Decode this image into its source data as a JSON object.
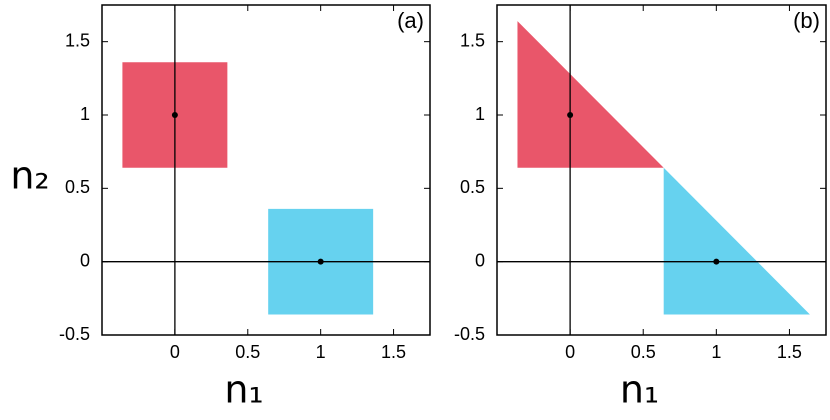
{
  "chart_data": [
    {
      "type": "shapes",
      "panel_label": "(a)",
      "xlabel": "n₁",
      "ylabel": "n₂",
      "xlim": [
        -0.5,
        1.75
      ],
      "ylim": [
        -0.5,
        1.75
      ],
      "xticks": [
        0,
        0.5,
        1,
        1.5
      ],
      "yticks": [
        -0.5,
        0,
        0.5,
        1,
        1.5
      ],
      "regions": [
        {
          "color": "#e9566a",
          "x": [
            -0.36,
            0.36,
            0.36,
            -0.36
          ],
          "y": [
            0.64,
            0.64,
            1.36,
            1.36
          ]
        },
        {
          "color": "#66d2ef",
          "x": [
            0.64,
            1.36,
            1.36,
            0.64
          ],
          "y": [
            -0.36,
            -0.36,
            0.36,
            0.36
          ]
        }
      ],
      "points": {
        "x": [
          0,
          1
        ],
        "y": [
          1,
          0
        ]
      }
    },
    {
      "type": "shapes",
      "panel_label": "(b)",
      "xlabel": "n₁",
      "xlim": [
        -0.5,
        1.75
      ],
      "ylim": [
        -0.5,
        1.75
      ],
      "xticks": [
        0,
        0.5,
        1,
        1.5
      ],
      "yticks": [
        -0.5,
        0,
        0.5,
        1,
        1.5
      ],
      "regions": [
        {
          "color": "#e9566a",
          "x": [
            -0.36,
            -0.36,
            0.64
          ],
          "y": [
            1.64,
            0.64,
            0.64
          ]
        },
        {
          "color": "#66d2ef",
          "x": [
            0.64,
            0.64,
            1.64
          ],
          "y": [
            0.64,
            -0.36,
            -0.36
          ]
        }
      ],
      "points": {
        "x": [
          0,
          1
        ],
        "y": [
          1,
          0
        ]
      }
    }
  ]
}
